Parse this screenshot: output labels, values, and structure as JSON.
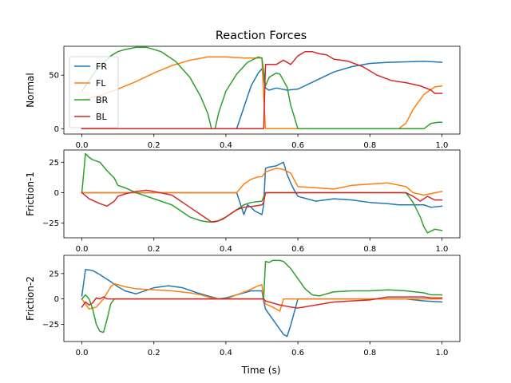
{
  "figure": {
    "title": "Reaction Forces",
    "xlabel": "Time (s)",
    "background": "#ffffff"
  },
  "chart_data": [
    {
      "type": "line",
      "ylabel": "Normal",
      "xlim": [
        -0.05,
        1.05
      ],
      "ylim": [
        -5,
        77
      ],
      "xticks": [
        0.0,
        0.2,
        0.4,
        0.6,
        0.8,
        1.0
      ],
      "xtick_labels": [
        "0.0",
        "0.2",
        "0.4",
        "0.6",
        "0.8",
        "1.0"
      ],
      "yticks": [
        0,
        50
      ],
      "ytick_labels": [
        "0",
        "50"
      ],
      "grid": false,
      "legend": {
        "placement": "top-left",
        "entries": [
          "FR",
          "FL",
          "BR",
          "BL"
        ]
      },
      "series": [
        {
          "name": "FR",
          "color": "#1f77b4",
          "x": [
            0.0,
            0.43,
            0.45,
            0.47,
            0.49,
            0.5,
            0.51,
            0.52,
            0.54,
            0.57,
            0.6,
            0.65,
            0.7,
            0.75,
            0.8,
            0.85,
            0.9,
            0.95,
            1.0
          ],
          "y": [
            0,
            0,
            20,
            40,
            52,
            56,
            38,
            36,
            38,
            36,
            37,
            45,
            53,
            58,
            61,
            62,
            62.5,
            63,
            62
          ]
        },
        {
          "name": "FL",
          "color": "#ff7f0e",
          "x": [
            0.0,
            0.05,
            0.1,
            0.15,
            0.2,
            0.25,
            0.3,
            0.35,
            0.4,
            0.45,
            0.5,
            0.505,
            0.51,
            0.55,
            0.6,
            0.7,
            0.8,
            0.88,
            0.9,
            0.92,
            0.95,
            0.98,
            1.0
          ],
          "y": [
            27,
            31,
            37,
            44,
            52,
            59,
            64,
            67,
            67,
            66,
            66,
            30,
            0,
            0,
            0,
            0,
            0,
            0,
            5,
            18,
            32,
            39,
            40
          ]
        },
        {
          "name": "BR",
          "color": "#2ca02c",
          "x": [
            0.0,
            0.04,
            0.08,
            0.1,
            0.12,
            0.15,
            0.18,
            0.22,
            0.26,
            0.3,
            0.33,
            0.35,
            0.36,
            0.37,
            0.38,
            0.4,
            0.43,
            0.46,
            0.49,
            0.5,
            0.51,
            0.52,
            0.54,
            0.55,
            0.57,
            0.58,
            0.6,
            0.7,
            0.8,
            0.9,
            0.95,
            0.97,
            0.99,
            1.0
          ],
          "y": [
            35,
            55,
            68,
            72,
            74,
            76,
            76,
            72,
            63,
            48,
            30,
            14,
            0,
            0,
            15,
            35,
            51,
            62,
            67,
            66,
            40,
            48,
            52,
            51,
            39,
            22,
            0,
            0,
            0,
            0,
            0,
            5,
            6,
            6
          ]
        },
        {
          "name": "BL",
          "color": "#d62728",
          "x": [
            0.0,
            0.505,
            0.51,
            0.52,
            0.54,
            0.56,
            0.58,
            0.6,
            0.62,
            0.64,
            0.66,
            0.68,
            0.7,
            0.74,
            0.78,
            0.82,
            0.86,
            0.9,
            0.94,
            0.97,
            0.98,
            1.0
          ],
          "y": [
            0,
            0,
            60,
            60,
            60,
            64,
            60,
            68,
            72,
            72,
            70,
            69,
            65,
            63,
            58,
            50,
            45,
            43,
            40,
            36,
            33,
            33
          ]
        }
      ]
    },
    {
      "type": "line",
      "ylabel": "Friction-1",
      "xlim": [
        -0.05,
        1.05
      ],
      "ylim": [
        -37,
        35
      ],
      "xticks": [
        0.0,
        0.2,
        0.4,
        0.6,
        0.8,
        1.0
      ],
      "xtick_labels": [
        "0.0",
        "0.2",
        "0.4",
        "0.6",
        "0.8",
        "1.0"
      ],
      "yticks": [
        -25,
        0,
        25
      ],
      "ytick_labels": [
        "−25",
        "0",
        "25"
      ],
      "grid": false,
      "series": [
        {
          "name": "FR",
          "color": "#1f77b4",
          "x": [
            0.0,
            0.43,
            0.45,
            0.46,
            0.47,
            0.48,
            0.5,
            0.505,
            0.51,
            0.52,
            0.54,
            0.56,
            0.57,
            0.58,
            0.59,
            0.6,
            0.65,
            0.7,
            0.75,
            0.8,
            0.85,
            0.88,
            0.9,
            0.95,
            0.97,
            1.0
          ],
          "y": [
            0,
            0,
            -18,
            -10,
            -12,
            -15,
            -18,
            -10,
            20,
            21,
            22,
            25,
            15,
            8,
            2,
            -3,
            -7,
            -5,
            -6,
            -8,
            -9,
            -10,
            -10,
            -10,
            -12,
            -11
          ]
        },
        {
          "name": "FL",
          "color": "#ff7f0e",
          "x": [
            0.0,
            0.43,
            0.45,
            0.47,
            0.49,
            0.5,
            0.51,
            0.52,
            0.54,
            0.56,
            0.58,
            0.6,
            0.65,
            0.7,
            0.75,
            0.8,
            0.85,
            0.9,
            0.92,
            0.95,
            1.0
          ],
          "y": [
            0,
            0,
            7,
            11,
            13,
            13,
            17,
            18,
            20,
            19,
            16,
            5,
            4,
            3,
            6,
            7,
            8,
            5,
            0,
            -2,
            1
          ]
        },
        {
          "name": "BR",
          "color": "#2ca02c",
          "x": [
            0.0,
            0.01,
            0.02,
            0.03,
            0.05,
            0.07,
            0.09,
            0.1,
            0.12,
            0.15,
            0.2,
            0.25,
            0.3,
            0.33,
            0.35,
            0.37,
            0.39,
            0.41,
            0.43,
            0.45,
            0.47,
            0.5,
            0.51,
            0.6,
            0.7,
            0.8,
            0.9,
            0.92,
            0.94,
            0.95,
            0.96,
            0.98,
            1.0
          ],
          "y": [
            0,
            32,
            29,
            27,
            25,
            18,
            12,
            6,
            4,
            0,
            -5,
            -10,
            -20,
            -23,
            -24,
            -24,
            -22,
            -18,
            -14,
            -10,
            -8,
            -7,
            0,
            0,
            0,
            0,
            0,
            -8,
            -20,
            -28,
            -33,
            -30,
            -31
          ]
        },
        {
          "name": "BL",
          "color": "#d62728",
          "x": [
            0.0,
            0.02,
            0.05,
            0.07,
            0.09,
            0.1,
            0.12,
            0.15,
            0.18,
            0.2,
            0.25,
            0.3,
            0.34,
            0.36,
            0.38,
            0.4,
            0.43,
            0.45,
            0.48,
            0.5,
            0.505,
            0.51,
            0.6,
            0.9,
            0.92,
            0.94,
            0.96,
            0.98,
            1.0
          ],
          "y": [
            0,
            -5,
            -9,
            -11,
            -7,
            -3,
            -1,
            1,
            2,
            1,
            -2,
            -12,
            -20,
            -24,
            -23,
            -20,
            -14,
            -12,
            -11,
            -10,
            -8,
            0,
            0,
            0,
            -3,
            -7,
            -3,
            -6,
            -6
          ]
        }
      ]
    },
    {
      "type": "line",
      "ylabel": "Friction-2",
      "xlim": [
        -0.05,
        1.05
      ],
      "ylim": [
        -42,
        43
      ],
      "xticks": [
        0.0,
        0.2,
        0.4,
        0.6,
        0.8,
        1.0
      ],
      "xtick_labels": [
        "0.0",
        "0.2",
        "0.4",
        "0.6",
        "0.8",
        "1.0"
      ],
      "yticks": [
        -25,
        0,
        25
      ],
      "ytick_labels": [
        "−25",
        "0",
        "25"
      ],
      "grid": false,
      "series": [
        {
          "name": "FR",
          "color": "#1f77b4",
          "x": [
            0.0,
            0.01,
            0.03,
            0.05,
            0.08,
            0.1,
            0.12,
            0.15,
            0.2,
            0.24,
            0.28,
            0.32,
            0.36,
            0.38,
            0.4,
            0.43,
            0.47,
            0.5,
            0.505,
            0.51,
            0.53,
            0.55,
            0.56,
            0.57,
            0.58,
            0.6,
            0.7,
            0.9,
            0.95,
            1.0
          ],
          "y": [
            3,
            29,
            28,
            24,
            17,
            12,
            8,
            5,
            11,
            13,
            11,
            6,
            2,
            0,
            1,
            4,
            8,
            8,
            -2,
            -10,
            -20,
            -30,
            -35,
            -37,
            -26,
            0,
            0,
            0,
            -2,
            -3
          ]
        },
        {
          "name": "FL",
          "color": "#ff7f0e",
          "x": [
            0.0,
            0.02,
            0.04,
            0.06,
            0.08,
            0.09,
            0.1,
            0.12,
            0.15,
            0.2,
            0.25,
            0.3,
            0.33,
            0.36,
            0.38,
            0.4,
            0.43,
            0.46,
            0.49,
            0.5,
            0.505,
            0.51,
            0.53,
            0.55,
            0.56,
            0.6,
            0.9,
            1.0
          ],
          "y": [
            0,
            -10,
            -8,
            0,
            12,
            15,
            14,
            12,
            10,
            9,
            8,
            6,
            4,
            1,
            0,
            0,
            4,
            8,
            13,
            14,
            0,
            -5,
            -8,
            -12,
            0,
            0,
            0,
            0
          ]
        },
        {
          "name": "BR",
          "color": "#2ca02c",
          "x": [
            0.0,
            0.01,
            0.02,
            0.03,
            0.04,
            0.05,
            0.06,
            0.07,
            0.08,
            0.09,
            0.1,
            0.505,
            0.51,
            0.52,
            0.53,
            0.55,
            0.56,
            0.58,
            0.6,
            0.62,
            0.64,
            0.66,
            0.68,
            0.7,
            0.75,
            0.8,
            0.85,
            0.9,
            0.95,
            0.97,
            1.0
          ],
          "y": [
            0,
            4,
            0,
            -10,
            -25,
            -32,
            -33,
            -20,
            -5,
            0,
            0,
            0,
            37,
            36,
            38,
            38,
            37,
            30,
            20,
            10,
            4,
            3,
            5,
            7,
            8,
            8,
            9,
            8,
            6,
            4,
            4
          ]
        },
        {
          "name": "BL",
          "color": "#d62728",
          "x": [
            0.0,
            0.01,
            0.02,
            0.03,
            0.04,
            0.05,
            0.06,
            0.07,
            0.5,
            0.505,
            0.51,
            0.53,
            0.55,
            0.58,
            0.6,
            0.65,
            0.7,
            0.75,
            0.8,
            0.85,
            0.9,
            0.95,
            0.97,
            1.0
          ],
          "y": [
            -8,
            -3,
            -6,
            -4,
            1,
            0,
            2,
            0,
            0,
            0,
            -2,
            -4,
            -6,
            -8,
            -9,
            -6,
            -3,
            -2,
            -1,
            2,
            2,
            2,
            1,
            1
          ]
        }
      ]
    }
  ]
}
